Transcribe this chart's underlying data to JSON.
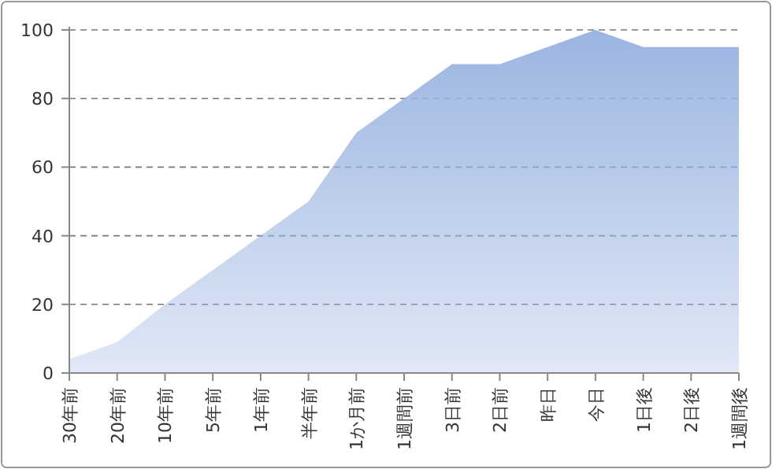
{
  "chart_data": {
    "type": "area",
    "categories": [
      "30年前",
      "20年前",
      "10年前",
      "5年前",
      "1年前",
      "半年前",
      "1か月前",
      "1週間前",
      "3日前",
      "2日前",
      "昨日",
      "今日",
      "1日後",
      "2日後",
      "1週間後"
    ],
    "values": [
      4,
      9,
      20,
      30,
      40,
      50,
      70,
      80,
      90,
      90,
      95,
      100,
      95,
      95,
      95
    ],
    "color": "#9bb4e1",
    "ylim": [
      0,
      100
    ],
    "yticks": [
      0,
      20,
      40,
      60,
      80,
      100
    ],
    "grid": "y"
  }
}
